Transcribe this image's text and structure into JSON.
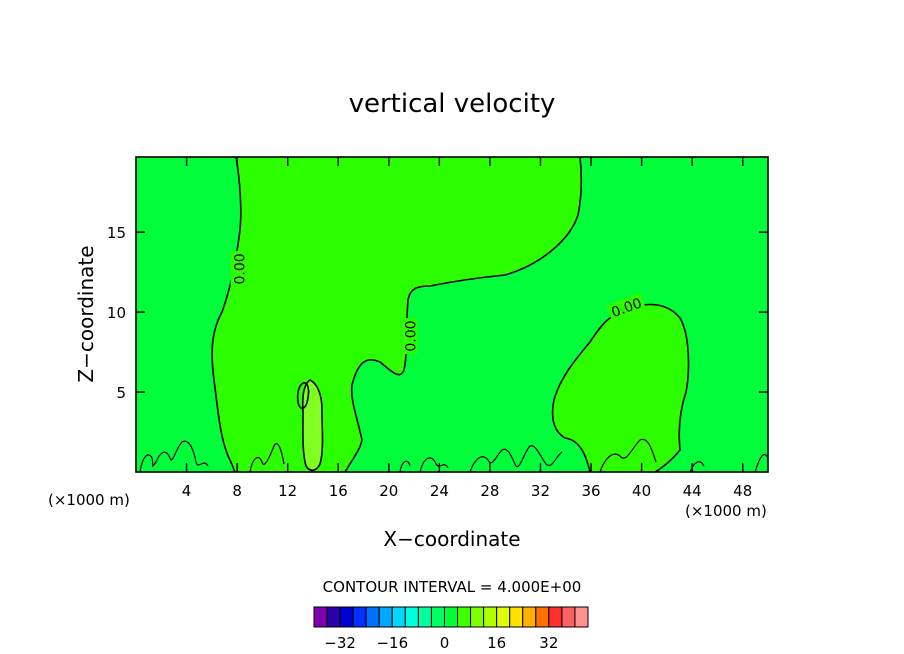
{
  "chart_data": {
    "type": "contour",
    "title": "vertical velocity",
    "xlabel": "X−coordinate",
    "ylabel": "Z−coordinate",
    "x_unit_left": "(×1000 m)",
    "x_unit_right": "(×1000 m)",
    "xlim": [
      0,
      50
    ],
    "ylim": [
      0,
      19.7
    ],
    "x_ticks": [
      4,
      8,
      12,
      16,
      20,
      24,
      28,
      32,
      36,
      40,
      44,
      48
    ],
    "y_ticks": [
      5,
      10,
      15
    ],
    "contour_interval_text": "CONTOUR INTERVAL = 4.000E+00",
    "contour_labels": [
      {
        "text": "0.00",
        "x": 8.2,
        "y": 12.7,
        "angle": -90
      },
      {
        "text": "0.00",
        "x": 21.7,
        "y": 8.5,
        "angle": -90
      },
      {
        "text": "0.00",
        "x": 38.8,
        "y": 10.3,
        "angle": -20
      }
    ],
    "colorbar": {
      "colors": [
        "#8000b0",
        "#2a00a8",
        "#0000d0",
        "#0030ff",
        "#0070ff",
        "#00a8ff",
        "#00d8ff",
        "#00ffe0",
        "#00ffa0",
        "#00ff60",
        "#00ff30",
        "#40ff00",
        "#80ff00",
        "#b0ff00",
        "#e0ff00",
        "#ffe000",
        "#ffb000",
        "#ff7000",
        "#ff3030",
        "#ff6060",
        "#ff9090"
      ],
      "tick_labels": [
        "−32",
        "−16",
        "0",
        "16",
        "32"
      ],
      "tick_values": [
        -32,
        -16,
        0,
        16,
        32
      ],
      "value_range": [
        -40,
        44
      ]
    },
    "fill_colors": {
      "background": "#00ff3a",
      "positive": "#2cff00",
      "strong_positive": "#80ff20"
    }
  }
}
